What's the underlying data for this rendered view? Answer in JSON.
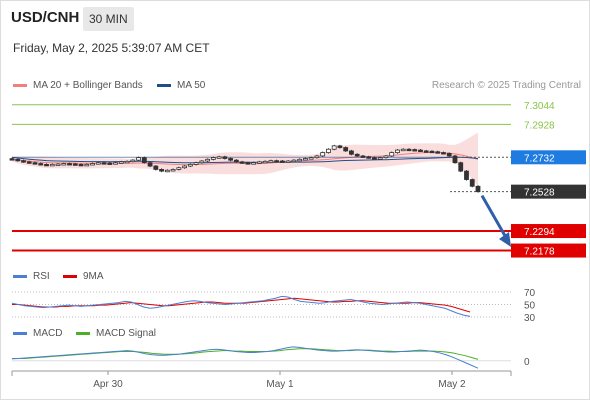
{
  "header": {
    "symbol": "USD/CNH",
    "interval": "30 MIN",
    "datetime": "Friday, May 2, 2025 5:39:07 AM CET"
  },
  "legend": {
    "main": [
      {
        "label": "MA 20 + Bollinger Bands",
        "color": "#f08080"
      },
      {
        "label": "MA 50",
        "color": "#1f4e8c"
      }
    ],
    "credit": "Research © 2025 Trading Central",
    "rsi": [
      {
        "label": "RSI",
        "color": "#4a7fd4"
      },
      {
        "label": "9MA",
        "color": "#e00000"
      }
    ],
    "macd": [
      {
        "label": "MACD",
        "color": "#4a7fd4"
      },
      {
        "label": "MACD Signal",
        "color": "#4caf28"
      }
    ]
  },
  "price_levels": [
    {
      "label": "7.3044",
      "value": 7.3044,
      "style": "resistance"
    },
    {
      "label": "7.2928",
      "value": 7.2928,
      "style": "resistance"
    },
    {
      "label": "7.2732",
      "value": 7.2732,
      "style": "pivot"
    },
    {
      "label": "7.2528",
      "value": 7.2528,
      "style": "last"
    },
    {
      "label": "7.2294",
      "value": 7.2294,
      "style": "support"
    },
    {
      "label": "7.2178",
      "value": 7.2178,
      "style": "support"
    }
  ],
  "colors": {
    "resistance": "#8bc34a",
    "pivot": "#1e7be0",
    "last": "#333333",
    "support": "#e00000",
    "up": "#333333",
    "down": "#333333",
    "band": "#f9d6d6",
    "ma20": "#f08080",
    "ma50": "#1f4e8c"
  },
  "rsi_levels": [
    "70",
    "50",
    "30"
  ],
  "macd_level": "0",
  "x_axis": [
    "Apr 30",
    "May 1",
    "May 2"
  ],
  "chart_data": {
    "type": "candlestick",
    "y_price_range": [
      7.211,
      7.312
    ],
    "closes": [
      7.272,
      7.2712,
      7.2705,
      7.27,
      7.2695,
      7.269,
      7.2688,
      7.269,
      7.2692,
      7.2695,
      7.2693,
      7.269,
      7.2688,
      7.269,
      7.2695,
      7.27,
      7.2698,
      7.2695,
      7.27,
      7.2705,
      7.2708,
      7.2715,
      7.273,
      7.27,
      7.268,
      7.266,
      7.265,
      7.2655,
      7.266,
      7.267,
      7.268,
      7.269,
      7.27,
      7.271,
      7.272,
      7.273,
      7.2735,
      7.2725,
      7.2715,
      7.2705,
      7.27,
      7.2695,
      7.27,
      7.2705,
      7.2708,
      7.2712,
      7.271,
      7.2708,
      7.271,
      7.2715,
      7.272,
      7.2725,
      7.273,
      7.274,
      7.276,
      7.278,
      7.28,
      7.279,
      7.277,
      7.275,
      7.274,
      7.2735,
      7.273,
      7.2728,
      7.273,
      7.274,
      7.276,
      7.2775,
      7.278,
      7.2778,
      7.2775,
      7.277,
      7.2768,
      7.2765,
      7.276,
      7.2755,
      7.274,
      7.27,
      7.265,
      7.26,
      7.256,
      7.2528
    ],
    "rsi": [
      52,
      50,
      48,
      47,
      46,
      45,
      46,
      47,
      48,
      49,
      48,
      47,
      48,
      49,
      50,
      51,
      52,
      53,
      55,
      54,
      50,
      46,
      44,
      45,
      47,
      49,
      51,
      53,
      55,
      56,
      55,
      53,
      52,
      51,
      50,
      51,
      52,
      53,
      54,
      55,
      56,
      58,
      60,
      63,
      62,
      58,
      55,
      54,
      53,
      52,
      53,
      55,
      56,
      57,
      58,
      56,
      54,
      52,
      51,
      50,
      51,
      52,
      53,
      54,
      53,
      52,
      50,
      48,
      46,
      44,
      40,
      36,
      33,
      31
    ],
    "rsi_ma": [
      50,
      50,
      49,
      48,
      47,
      46,
      46,
      46,
      47,
      47,
      48,
      48,
      48,
      48,
      49,
      49,
      50,
      51,
      52,
      53,
      52,
      51,
      50,
      49,
      48,
      48,
      49,
      50,
      51,
      52,
      53,
      54,
      54,
      53,
      52,
      52,
      52,
      52,
      53,
      54,
      55,
      56,
      57,
      58,
      59,
      60,
      59,
      58,
      57,
      56,
      55,
      54,
      54,
      55,
      55,
      56,
      56,
      55,
      54,
      53,
      52,
      52,
      52,
      52,
      53,
      53,
      52,
      51,
      50,
      49,
      47,
      44,
      41,
      38
    ],
    "macd": [
      5,
      5,
      6,
      7,
      8,
      9,
      10,
      11,
      12,
      13,
      14,
      15,
      16,
      17,
      18,
      19,
      20,
      21,
      22,
      21,
      18,
      15,
      13,
      12,
      12,
      13,
      14,
      16,
      18,
      20,
      22,
      24,
      25,
      24,
      22,
      20,
      19,
      18,
      18,
      19,
      20,
      22,
      25,
      28,
      30,
      29,
      27,
      25,
      23,
      22,
      21,
      21,
      22,
      23,
      24,
      23,
      22,
      21,
      20,
      19,
      19,
      20,
      21,
      22,
      23,
      22,
      20,
      17,
      13,
      8,
      2,
      -4,
      -10,
      -16
    ],
    "macd_signal": [
      4,
      5,
      5,
      6,
      7,
      8,
      9,
      10,
      11,
      12,
      13,
      14,
      15,
      16,
      17,
      18,
      19,
      20,
      20,
      20,
      19,
      18,
      16,
      15,
      14,
      14,
      14,
      15,
      16,
      17,
      19,
      20,
      21,
      22,
      22,
      21,
      21,
      20,
      20,
      20,
      20,
      21,
      22,
      24,
      25,
      26,
      26,
      26,
      25,
      24,
      23,
      22,
      22,
      22,
      23,
      23,
      23,
      22,
      21,
      21,
      20,
      20,
      20,
      21,
      21,
      21,
      21,
      20,
      19,
      17,
      14,
      11,
      7,
      3
    ]
  }
}
